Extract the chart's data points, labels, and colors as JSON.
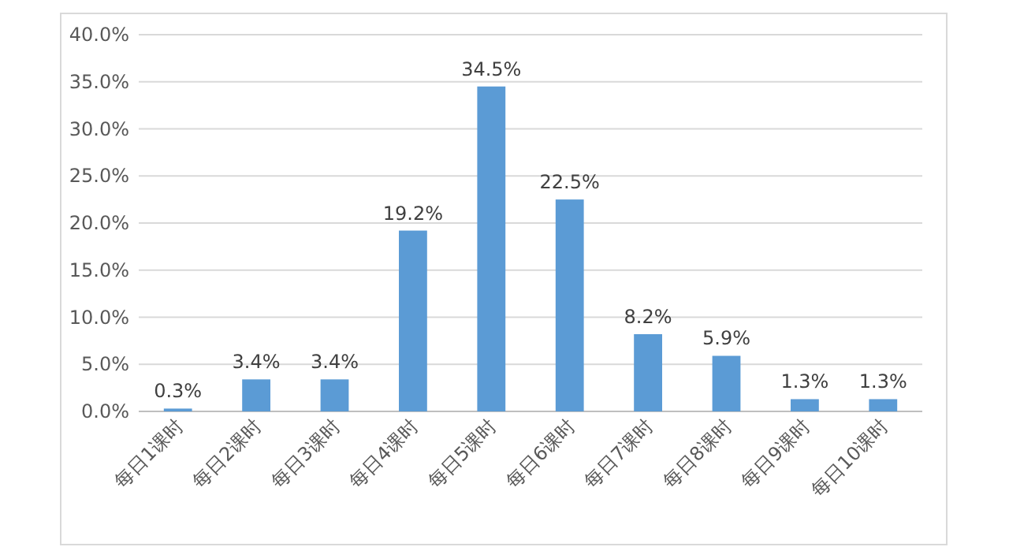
{
  "chart_data": {
    "type": "bar",
    "categories": [
      "每日1课时",
      "每日2课时",
      "每日3课时",
      "每日4课时",
      "每日5课时",
      "每日6课时",
      "每日7课时",
      "每日8课时",
      "每日9课时",
      "每日10课时"
    ],
    "values": [
      0.3,
      3.4,
      3.4,
      19.2,
      34.5,
      22.5,
      8.2,
      5.9,
      1.3,
      1.3
    ],
    "value_labels": [
      "0.3%",
      "3.4%",
      "3.4%",
      "19.2%",
      "34.5%",
      "22.5%",
      "8.2%",
      "5.9%",
      "1.3%",
      "1.3%"
    ],
    "color": "#5b9bd5",
    "ylim": [
      0,
      40
    ],
    "yticks": [
      {
        "value": 0,
        "label": "0.0%"
      },
      {
        "value": 5,
        "label": "5.0%"
      },
      {
        "value": 10,
        "label": "10.0%"
      },
      {
        "value": 15,
        "label": "15.0%"
      },
      {
        "value": 20,
        "label": "20.0%"
      },
      {
        "value": 25,
        "label": "25.0%"
      },
      {
        "value": 30,
        "label": "30.0%"
      },
      {
        "value": 35,
        "label": "35.0%"
      },
      {
        "value": 40,
        "label": "40.0%"
      }
    ],
    "grid": "y"
  }
}
